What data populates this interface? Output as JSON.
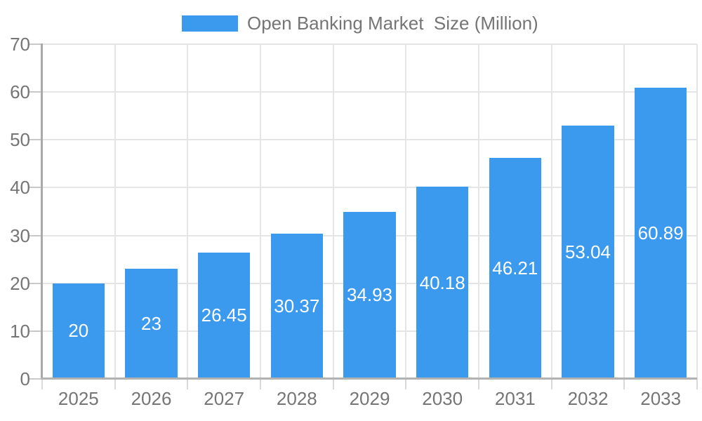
{
  "chart_data": {
    "type": "bar",
    "title": "Open Banking Market  Size (Million)",
    "legend": {
      "position": "top",
      "label": "Open Banking Market  Size (Million)"
    },
    "categories": [
      "2025",
      "2026",
      "2027",
      "2028",
      "2029",
      "2030",
      "2031",
      "2032",
      "2033"
    ],
    "values": [
      20,
      23,
      26.45,
      30.37,
      34.93,
      40.18,
      46.21,
      53.04,
      60.89
    ],
    "value_labels": [
      "20",
      "23",
      "26.45",
      "30.37",
      "34.93",
      "40.18",
      "46.21",
      "53.04",
      "60.89"
    ],
    "xlabel": "",
    "ylabel": "",
    "ylim": [
      0,
      70
    ],
    "ytick_step": 10,
    "grid": true,
    "colors": {
      "bar": "#3b99ee",
      "axis_label": "#757575",
      "value_label": "#ffffff",
      "gridline": "#e5e5e5",
      "axis_line": "#aaaaaa",
      "background": "#ffffff"
    }
  }
}
